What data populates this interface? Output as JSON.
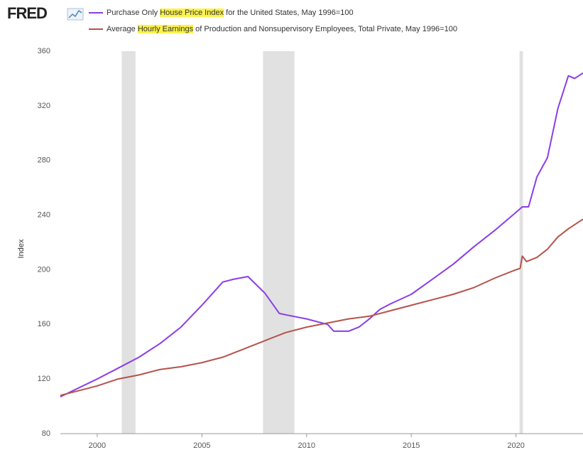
{
  "chart_data": {
    "type": "line",
    "logo": "FRED",
    "ylabel": "Index",
    "xlim": [
      1998.24,
      2023.2
    ],
    "ylim": [
      80,
      360
    ],
    "xticks": [
      2000,
      2005,
      2010,
      2015,
      2020
    ],
    "yticks": [
      80,
      120,
      160,
      200,
      240,
      280,
      320,
      360
    ],
    "grid": false,
    "recessions": [
      [
        2001.17,
        2001.83
      ],
      [
        2007.92,
        2009.42
      ],
      [
        2020.17,
        2020.33
      ]
    ],
    "recession_color": "#e1e1e1",
    "series": [
      {
        "name": "Purchase Only House Price Index for the United States, May 1996=100",
        "highlight": "House Price Index",
        "color": "#8a3ee6",
        "x": [
          1998.24,
          2000,
          2001,
          2002,
          2003,
          2004,
          2005,
          2006,
          2006.5,
          2007.2,
          2008,
          2008.7,
          2009,
          2010,
          2011,
          2011.3,
          2012,
          2012.5,
          2013,
          2013.5,
          2014,
          2015,
          2016,
          2017,
          2018,
          2019,
          2020,
          2020.3,
          2020.6,
          2021,
          2021.5,
          2022,
          2022.5,
          2022.8,
          2023.2
        ],
        "values": [
          107,
          120,
          128,
          136,
          146,
          158,
          174,
          191,
          193,
          195,
          183,
          168,
          167,
          164,
          160,
          155,
          155,
          158,
          164,
          171,
          175,
          182,
          193,
          204,
          217,
          229,
          242,
          246,
          246,
          268,
          282,
          318,
          342,
          340,
          344
        ]
      },
      {
        "name": "Average Hourly Earnings of Production and Nonsupervisory Employees, Total Private, May 1996=100",
        "highlight": "Hourly Earnings",
        "color": "#b5534a",
        "x": [
          1998.24,
          2000,
          2001,
          2002,
          2003,
          2004,
          2005,
          2006,
          2007,
          2008,
          2009,
          2010,
          2011,
          2012,
          2013,
          2014,
          2015,
          2016,
          2017,
          2018,
          2019,
          2020,
          2020.2,
          2020.3,
          2020.5,
          2021,
          2021.5,
          2022,
          2022.5,
          2023.2
        ],
        "values": [
          108,
          115,
          120,
          123,
          127,
          129,
          132,
          136,
          142,
          148,
          154,
          158,
          161,
          164,
          166,
          170,
          174,
          178,
          182,
          187,
          194,
          200,
          201,
          210,
          206,
          209,
          215,
          224,
          230,
          237
        ]
      }
    ]
  }
}
